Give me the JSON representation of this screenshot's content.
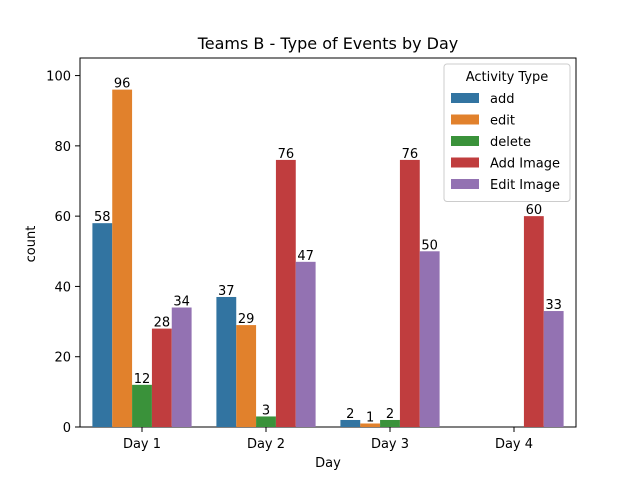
{
  "chart_data": {
    "type": "bar",
    "title": "Teams B - Type of Events by Day",
    "xlabel": "Day",
    "ylabel": "count",
    "categories": [
      "Day 1",
      "Day 2",
      "Day 3",
      "Day 4"
    ],
    "ylim": [
      0,
      100
    ],
    "yticks": [
      0,
      20,
      40,
      60,
      80,
      100
    ],
    "legend": {
      "title": "Activity Type",
      "placement": "top-right"
    },
    "series": [
      {
        "name": "add",
        "color": "#3274a1",
        "values": [
          58,
          37,
          2,
          null
        ]
      },
      {
        "name": "edit",
        "color": "#e1812c",
        "values": [
          96,
          29,
          1,
          null
        ]
      },
      {
        "name": "delete",
        "color": "#3a923a",
        "values": [
          12,
          3,
          2,
          null
        ]
      },
      {
        "name": "Add Image",
        "color": "#c03d3e",
        "values": [
          28,
          76,
          76,
          60
        ]
      },
      {
        "name": "Edit Image",
        "color": "#9372b2",
        "values": [
          34,
          47,
          50,
          33
        ]
      }
    ]
  }
}
